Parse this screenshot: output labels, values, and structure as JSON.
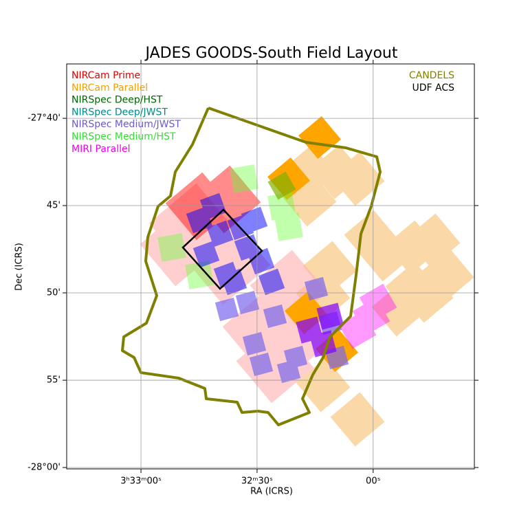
{
  "chart_data": {
    "type": "sky_map",
    "title": "JADES GOODS-South Field Layout",
    "xlabel": "RA (ICRS)",
    "ylabel": "Dec (ICRS)",
    "xlim": [
      53.33,
      52.891
    ],
    "ylim": [
      -28.0013,
      -27.6148
    ],
    "xticks": [
      {
        "value": 53.25,
        "label": "3ʰ33ᵐ00ˢ"
      },
      {
        "value": 53.125,
        "label": "32ᵐ30ˢ"
      },
      {
        "value": 53.0,
        "label": "00ˢ"
      }
    ],
    "yticks": [
      {
        "value": -27.6667,
        "label": "-27°40'"
      },
      {
        "value": -27.75,
        "label": "45'"
      },
      {
        "value": -27.8333,
        "label": "50'"
      },
      {
        "value": -27.9167,
        "label": "55'"
      },
      {
        "value": -28.0,
        "label": "-28°00'"
      }
    ],
    "grid": true,
    "legend_left": [
      {
        "name": "NIRCam Prime",
        "color": "#e00000"
      },
      {
        "name": "NIRCam Parallel",
        "color": "#f0a000"
      },
      {
        "name": "NIRSpec Deep/HST",
        "color": "#006400"
      },
      {
        "name": "NIRSpec Deep/JWST",
        "color": "#008b8b"
      },
      {
        "name": "NIRSpec Medium/JWST",
        "color": "#6a5acd"
      },
      {
        "name": "NIRSpec Medium/HST",
        "color": "#33dd33"
      },
      {
        "name": "MIRI Parallel",
        "color": "#ee00ee"
      }
    ],
    "legend_right": [
      {
        "name": "CANDELS",
        "color": "#808000"
      },
      {
        "name": "UDF ACS",
        "color": "#000000"
      }
    ]
  }
}
